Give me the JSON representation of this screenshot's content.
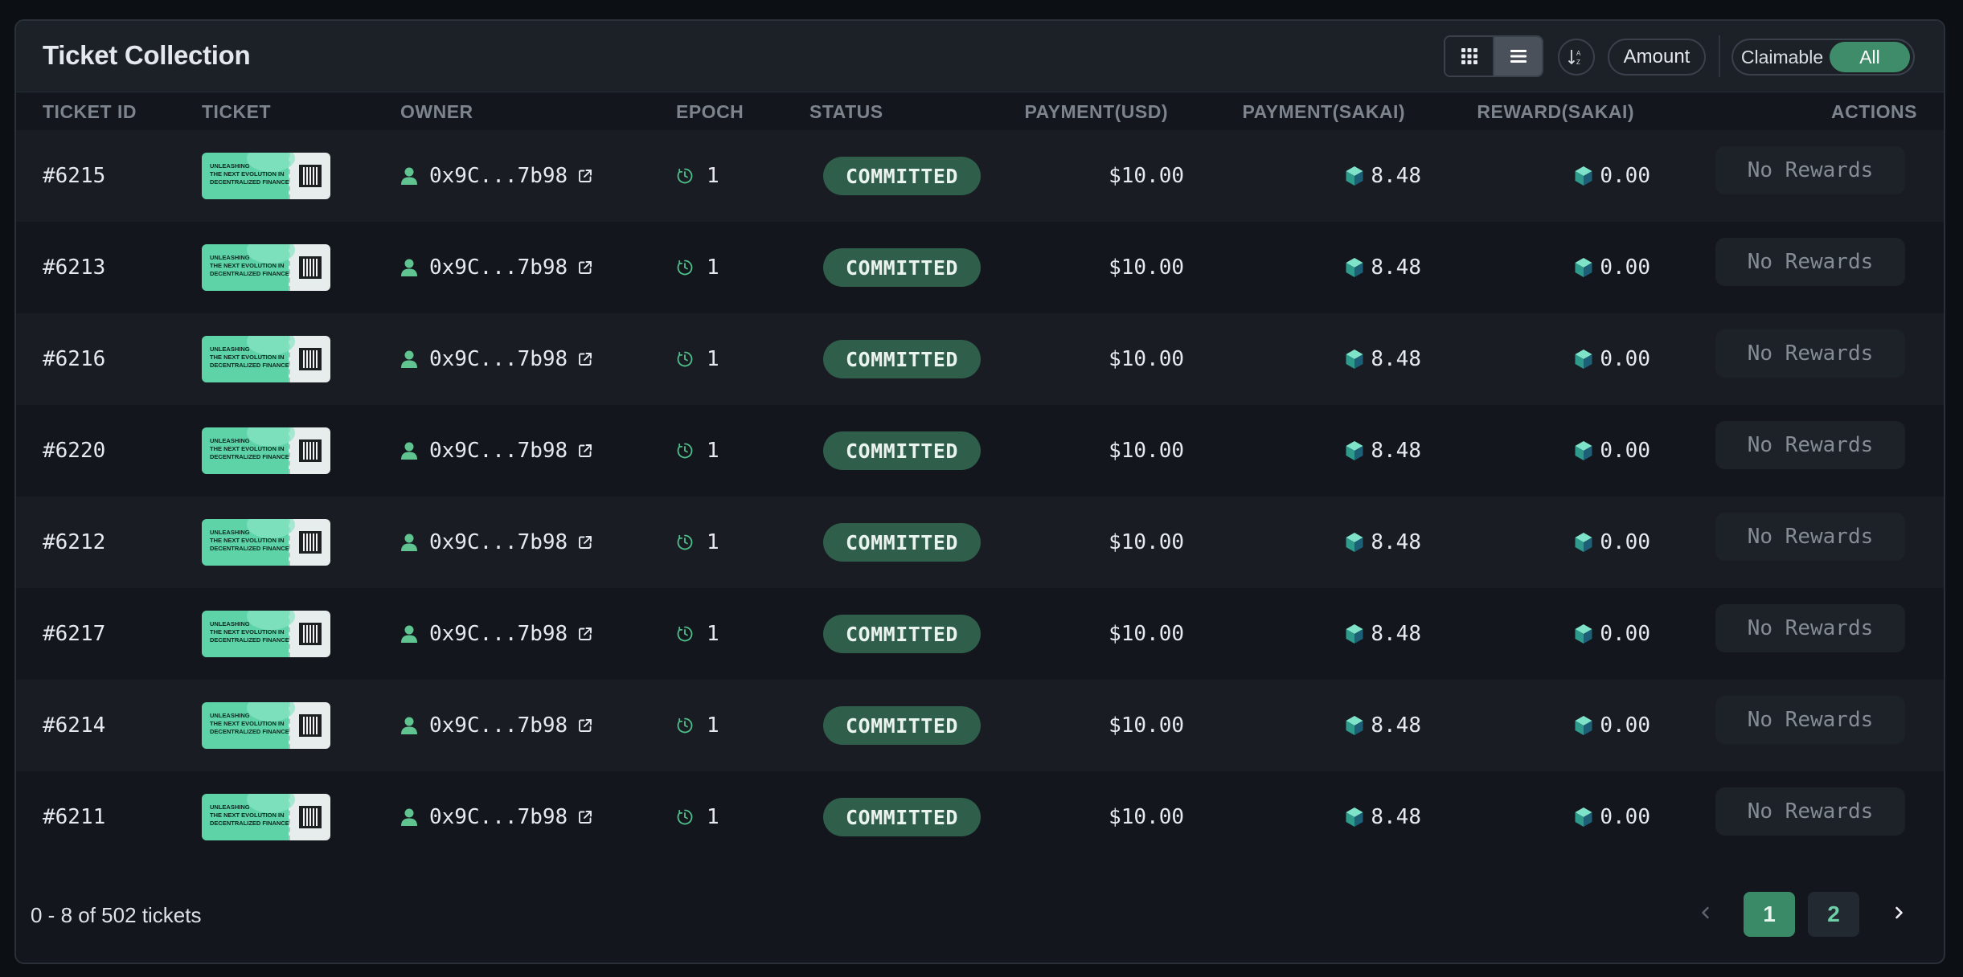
{
  "header": {
    "title": "Ticket Collection",
    "view_grid_icon": "grid-view-icon",
    "view_list_icon": "list-view-icon",
    "sort_icon": "sort-icon",
    "sort_field_label": "Amount",
    "filter_options": [
      "Claimable",
      "All"
    ],
    "filter_selected": "All"
  },
  "table": {
    "columns": {
      "ticket_id": "TICKET ID",
      "ticket": "TICKET",
      "owner": "OWNER",
      "epoch": "EPOCH",
      "status": "STATUS",
      "payment_usd": "PAYMENT(USD)",
      "payment_sakai": "PAYMENT(SAKAI)",
      "reward_sakai": "REWARD(SAKAI)",
      "actions": "ACTIONS"
    },
    "ticket_art_text": [
      "UNLEASHING",
      "THE NEXT EVOLUTION IN",
      "DECENTRALIZED FINANCE"
    ],
    "rows": [
      {
        "id": "#6215",
        "owner": "0x9C...7b98",
        "epoch": "1",
        "status": "COMMITTED",
        "payment_usd": "$10.00",
        "payment_sakai": "8.48",
        "reward_sakai": "0.00",
        "action": "No Rewards"
      },
      {
        "id": "#6213",
        "owner": "0x9C...7b98",
        "epoch": "1",
        "status": "COMMITTED",
        "payment_usd": "$10.00",
        "payment_sakai": "8.48",
        "reward_sakai": "0.00",
        "action": "No Rewards"
      },
      {
        "id": "#6216",
        "owner": "0x9C...7b98",
        "epoch": "1",
        "status": "COMMITTED",
        "payment_usd": "$10.00",
        "payment_sakai": "8.48",
        "reward_sakai": "0.00",
        "action": "No Rewards"
      },
      {
        "id": "#6220",
        "owner": "0x9C...7b98",
        "epoch": "1",
        "status": "COMMITTED",
        "payment_usd": "$10.00",
        "payment_sakai": "8.48",
        "reward_sakai": "0.00",
        "action": "No Rewards"
      },
      {
        "id": "#6212",
        "owner": "0x9C...7b98",
        "epoch": "1",
        "status": "COMMITTED",
        "payment_usd": "$10.00",
        "payment_sakai": "8.48",
        "reward_sakai": "0.00",
        "action": "No Rewards"
      },
      {
        "id": "#6217",
        "owner": "0x9C...7b98",
        "epoch": "1",
        "status": "COMMITTED",
        "payment_usd": "$10.00",
        "payment_sakai": "8.48",
        "reward_sakai": "0.00",
        "action": "No Rewards"
      },
      {
        "id": "#6214",
        "owner": "0x9C...7b98",
        "epoch": "1",
        "status": "COMMITTED",
        "payment_usd": "$10.00",
        "payment_sakai": "8.48",
        "reward_sakai": "0.00",
        "action": "No Rewards"
      },
      {
        "id": "#6211",
        "owner": "0x9C...7b98",
        "epoch": "1",
        "status": "COMMITTED",
        "payment_usd": "$10.00",
        "payment_sakai": "8.48",
        "reward_sakai": "0.00",
        "action": "No Rewards"
      }
    ]
  },
  "footer": {
    "range_text": "0 - 8 of 502 tickets",
    "pages": [
      "1",
      "2"
    ],
    "current_page": "1",
    "prev_icon": "chevron-left-icon",
    "next_icon": "chevron-right-icon"
  },
  "colors": {
    "accent": "#3f8c6a",
    "status_committed_bg": "#2f5e4b",
    "owner_icon": "#5fc48f",
    "epoch_icon": "#4fbf8a",
    "background": "#0c1015"
  }
}
